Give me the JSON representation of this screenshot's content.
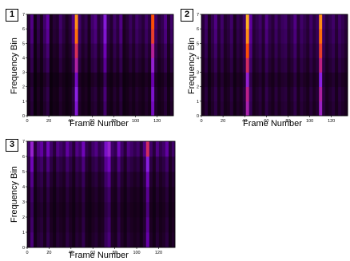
{
  "colors": {
    "colormap": [
      "#000000",
      "#1a001f",
      "#3a0060",
      "#6a00b0",
      "#8a20e0",
      "#c02080",
      "#ff5000",
      "#ffb020"
    ]
  },
  "chart_data": [
    {
      "type": "heatmap",
      "panel_label": "1",
      "xlabel": "Frame Number",
      "ylabel": "Frequency Bin",
      "xlim": [
        0,
        135
      ],
      "ylim": [
        0,
        7
      ],
      "xticks": [
        "0",
        "20",
        "40",
        "60",
        "80",
        "100",
        "120"
      ],
      "yticks": [
        "0",
        "1",
        "2",
        "3",
        "4",
        "5",
        "6",
        "7"
      ],
      "rows": 7,
      "column_intensity_top": [
        0.2,
        0.35,
        0.1,
        0.25,
        0.15,
        0.3,
        0.4,
        0.12,
        0.2,
        0.18,
        0.3,
        0.22,
        0.15,
        0.2,
        0.35,
        0.95,
        0.3,
        0.2,
        0.25,
        0.15,
        0.3,
        0.35,
        0.2,
        0.28,
        0.55,
        0.25,
        0.18,
        0.3,
        0.22,
        0.35,
        0.15,
        0.2,
        0.28,
        0.2,
        0.3,
        0.25,
        0.2,
        0.3,
        0.22,
        0.85,
        0.3,
        0.2,
        0.25,
        0.35,
        0.18,
        0.3
      ],
      "row_decay": [
        0.55,
        0.6,
        0.5,
        0.7,
        0.8,
        0.95,
        1.0
      ]
    },
    {
      "type": "heatmap",
      "panel_label": "2",
      "xlabel": "Frame Number",
      "ylabel": "Frequency Bin",
      "xlim": [
        0,
        135
      ],
      "ylim": [
        0,
        7
      ],
      "xticks": [
        "0",
        "20",
        "40",
        "60",
        "80",
        "100",
        "120"
      ],
      "yticks": [
        "0",
        "1",
        "2",
        "3",
        "4",
        "5",
        "6",
        "7"
      ],
      "rows": 7,
      "column_intensity_top": [
        0.2,
        0.3,
        0.15,
        0.25,
        0.35,
        0.2,
        0.3,
        0.18,
        0.22,
        0.3,
        0.15,
        0.25,
        0.2,
        0.3,
        1.0,
        0.4,
        0.2,
        0.25,
        0.3,
        0.2,
        0.35,
        0.25,
        0.2,
        0.3,
        0.22,
        0.28,
        0.3,
        0.2,
        0.25,
        0.35,
        0.2,
        0.3,
        0.25,
        0.2,
        0.3,
        0.22,
        0.28,
        0.95,
        0.3,
        0.2,
        0.25,
        0.3,
        0.2,
        0.3,
        0.25,
        0.2
      ],
      "row_decay": [
        0.65,
        0.7,
        0.6,
        0.75,
        0.85,
        0.95,
        1.0
      ]
    },
    {
      "type": "heatmap",
      "panel_label": "3",
      "xlabel": "Frame Number",
      "ylabel": "Frequency Bin",
      "xlim": [
        0,
        135
      ],
      "ylim": [
        0,
        7
      ],
      "xticks": [
        "0",
        "20",
        "40",
        "60",
        "80",
        "100",
        "120"
      ],
      "yticks": [
        "0",
        "1",
        "2",
        "3",
        "4",
        "5",
        "6",
        "7"
      ],
      "rows": 7,
      "column_intensity_top": [
        0.3,
        0.6,
        0.2,
        0.35,
        0.4,
        0.25,
        0.45,
        0.3,
        0.2,
        0.35,
        0.3,
        0.25,
        0.4,
        0.3,
        0.2,
        0.35,
        0.3,
        0.45,
        0.25,
        0.2,
        0.3,
        0.35,
        0.25,
        0.3,
        0.5,
        0.6,
        0.3,
        0.25,
        0.45,
        0.3,
        0.2,
        0.35,
        0.3,
        0.25,
        0.3,
        0.2,
        0.35,
        0.75,
        0.3,
        0.2,
        0.35,
        0.25,
        0.3,
        0.4,
        0.2,
        0.3
      ],
      "row_decay": [
        0.55,
        0.5,
        0.45,
        0.5,
        0.6,
        0.75,
        1.0
      ]
    }
  ]
}
